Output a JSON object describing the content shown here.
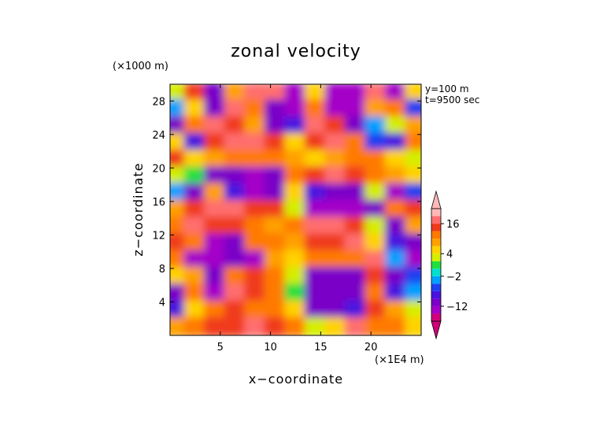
{
  "chart_data": {
    "type": "heatmap",
    "title": "zonal velocity",
    "xlabel": "x−coordinate",
    "ylabel": "z−coordinate",
    "x_unit": "(×1E4 m)",
    "y_unit": "(×1000 m)",
    "annotations": [
      "y=100 m",
      "t=9500 sec"
    ],
    "xlim": [
      0,
      25
    ],
    "ylim": [
      0,
      30
    ],
    "x_ticks": [
      5,
      10,
      15,
      20
    ],
    "y_ticks": [
      4,
      8,
      12,
      16,
      20,
      24,
      28
    ],
    "colorbar": {
      "labels": [
        {
          "value": 16,
          "text": "16"
        },
        {
          "value": 4,
          "text": "4"
        },
        {
          "value": -2,
          "text": "−2"
        },
        {
          "value": -12,
          "text": "−12"
        }
      ],
      "levels": [
        -20,
        -16,
        -12,
        -8,
        -6,
        -4,
        -2,
        0,
        2,
        4,
        6,
        8,
        12,
        16,
        20
      ],
      "colors": [
        "#d1007a",
        "#a400c8",
        "#7a00c8",
        "#4a14e0",
        "#1e40f0",
        "#00a0ff",
        "#00e0d0",
        "#20e040",
        "#d4ee00",
        "#ffd200",
        "#ffa000",
        "#ff7a00",
        "#f03a1a",
        "#ff6e6e",
        "#ffb8b8"
      ]
    },
    "z_grid": {
      "x_centers": [
        0.5,
        2.5,
        4.5,
        6.5,
        8.5,
        10.5,
        12.5,
        14.5,
        16.5,
        18.5,
        20.5,
        22.5,
        24.5
      ],
      "z_centers": [
        29,
        27,
        25,
        23,
        21,
        19,
        17,
        15,
        13,
        11,
        9,
        7,
        5,
        3,
        1
      ],
      "values": [
        [
          2,
          14,
          -12,
          6,
          18,
          16,
          -14,
          4,
          -14,
          -16,
          18,
          -14,
          4
        ],
        [
          -4,
          4,
          -10,
          16,
          8,
          -12,
          -14,
          8,
          -16,
          -14,
          6,
          8,
          -6
        ],
        [
          -10,
          8,
          18,
          14,
          6,
          -10,
          -8,
          18,
          14,
          -12,
          -4,
          2,
          6
        ],
        [
          4,
          -8,
          14,
          16,
          18,
          12,
          4,
          14,
          16,
          8,
          -6,
          -8,
          10
        ],
        [
          12,
          4,
          6,
          8,
          10,
          8,
          6,
          4,
          6,
          8,
          10,
          4,
          2
        ],
        [
          2,
          0,
          -10,
          -12,
          -14,
          -12,
          8,
          12,
          16,
          14,
          10,
          6,
          4
        ],
        [
          -4,
          -12,
          6,
          -8,
          -14,
          -12,
          4,
          -8,
          -10,
          -12,
          2,
          -14,
          -6
        ],
        [
          6,
          14,
          16,
          18,
          14,
          12,
          2,
          -14,
          -16,
          -14,
          -12,
          8,
          14
        ],
        [
          10,
          16,
          14,
          12,
          8,
          6,
          10,
          16,
          18,
          12,
          2,
          -10,
          6
        ],
        [
          12,
          8,
          -14,
          -12,
          10,
          8,
          6,
          12,
          14,
          16,
          4,
          -8,
          -12
        ],
        [
          8,
          -14,
          -16,
          -12,
          -14,
          6,
          4,
          8,
          10,
          8,
          16,
          -4,
          -14
        ],
        [
          4,
          6,
          -12,
          8,
          14,
          10,
          2,
          -10,
          -12,
          -10,
          14,
          -12,
          -6
        ],
        [
          -12,
          10,
          -14,
          16,
          12,
          8,
          0,
          -12,
          -12,
          -10,
          10,
          -8,
          -4
        ],
        [
          -8,
          4,
          8,
          12,
          10,
          8,
          4,
          -10,
          -12,
          -8,
          12,
          6,
          2
        ],
        [
          6,
          10,
          12,
          14,
          16,
          12,
          8,
          2,
          4,
          16,
          10,
          8,
          4
        ]
      ]
    }
  }
}
